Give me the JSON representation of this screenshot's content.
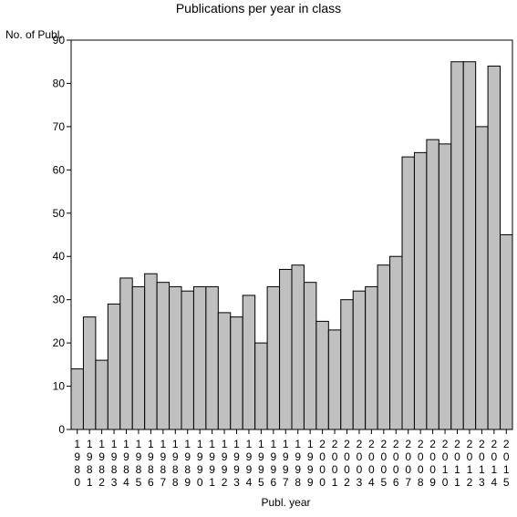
{
  "chart_data": {
    "type": "bar",
    "title": "Publications per year in class",
    "ylabel": "No. of Publ.",
    "xlabel": "Publ. year",
    "ylim": [
      0,
      90
    ],
    "yticks": [
      0,
      10,
      20,
      30,
      40,
      50,
      60,
      70,
      80,
      90
    ],
    "categories": [
      "1980",
      "1981",
      "1982",
      "1983",
      "1984",
      "1985",
      "1986",
      "1987",
      "1988",
      "1989",
      "1990",
      "1991",
      "1992",
      "1993",
      "1994",
      "1995",
      "1996",
      "1997",
      "1998",
      "1999",
      "2000",
      "2001",
      "2002",
      "2003",
      "2004",
      "2005",
      "2006",
      "2007",
      "2008",
      "2009",
      "2010",
      "2011",
      "2012",
      "2013",
      "2014",
      "2015"
    ],
    "values": [
      14,
      26,
      16,
      29,
      35,
      33,
      36,
      34,
      33,
      32,
      33,
      33,
      27,
      26,
      31,
      20,
      33,
      37,
      38,
      34,
      25,
      23,
      30,
      32,
      33,
      38,
      40,
      63,
      64,
      67,
      66,
      85,
      85,
      70,
      84,
      45
    ],
    "bar_color": "#c0c0c0",
    "grid": false
  }
}
